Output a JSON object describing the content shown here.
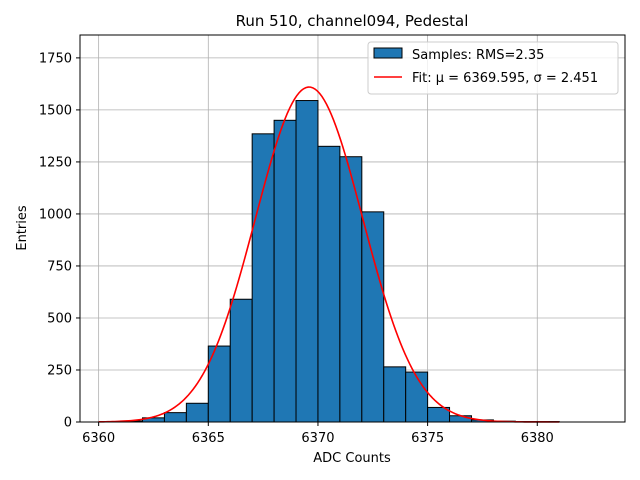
{
  "chart_data": {
    "type": "bar",
    "title": "Run 510, channel094, Pedestal",
    "xlabel": "ADC Counts",
    "ylabel": "Entries",
    "xlim": [
      6359.15,
      6384.0
    ],
    "ylim": [
      0,
      1860
    ],
    "xticks": [
      6360,
      6365,
      6370,
      6375,
      6380
    ],
    "yticks": [
      0,
      250,
      500,
      750,
      1000,
      1250,
      1500,
      1750
    ],
    "xtick_labels": [
      "6360",
      "6365",
      "6370",
      "6375",
      "6380"
    ],
    "ytick_labels": [
      "0",
      "250",
      "500",
      "750",
      "1000",
      "1250",
      "1500",
      "1750"
    ],
    "grid": true,
    "legend_position": "top-right",
    "bar_color": "#1f77b4",
    "bar_edge_color": "#000000",
    "fit_color": "#ff0000",
    "bins": {
      "edges": [
        6361,
        6362,
        6363,
        6364,
        6365,
        6366,
        6367,
        6368,
        6369,
        6370,
        6371,
        6372,
        6373,
        6374,
        6375,
        6376,
        6377,
        6378,
        6379,
        6380,
        6381
      ],
      "counts": [
        5,
        20,
        45,
        90,
        365,
        590,
        1385,
        1450,
        1545,
        1325,
        1275,
        1010,
        265,
        240,
        70,
        30,
        10,
        4,
        2,
        2
      ]
    },
    "series": [
      {
        "name": "Samples: RMS=2.35",
        "kind": "histogram"
      },
      {
        "name": "Fit: μ = 6369.595, σ = 2.451",
        "kind": "gaussian",
        "mu": 6369.595,
        "sigma": 2.451,
        "amplitude": 1610,
        "x_range": [
          6360,
          6381
        ]
      }
    ]
  }
}
